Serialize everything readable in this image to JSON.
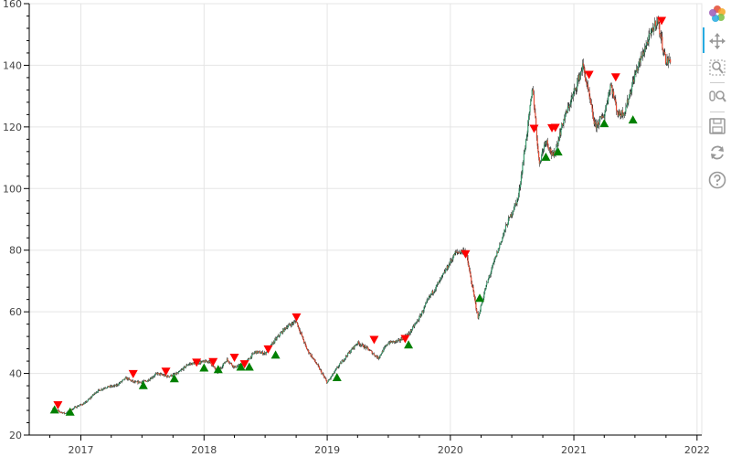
{
  "chart_data": {
    "type": "candlestick",
    "title": "",
    "xlabel": "",
    "ylabel": "",
    "x_tick_labels": [
      "2017",
      "2018",
      "2019",
      "2020",
      "2021",
      "2022"
    ],
    "y_tick_labels": [
      "20",
      "40",
      "60",
      "80",
      "100",
      "120",
      "140",
      "160"
    ],
    "xlim": [
      "2016-08-01",
      "2022-01-15"
    ],
    "ylim": [
      20,
      160
    ],
    "grid": true,
    "colors": {
      "up": "#3a9b6e",
      "down": "#e34a33",
      "wick": "#000000",
      "buy_marker": "#008000",
      "sell_marker": "#ff0000"
    },
    "price_path": [
      [
        "2016-10-10",
        28.5
      ],
      [
        "2016-11-01",
        27.5
      ],
      [
        "2016-11-15",
        27.0
      ],
      [
        "2016-12-15",
        29.0
      ],
      [
        "2017-01-15",
        30.5
      ],
      [
        "2017-02-15",
        34.0
      ],
      [
        "2017-03-15",
        35.5
      ],
      [
        "2017-04-15",
        36.0
      ],
      [
        "2017-05-15",
        38.5
      ],
      [
        "2017-06-10",
        37.0
      ],
      [
        "2017-07-15",
        37.5
      ],
      [
        "2017-08-15",
        40.0
      ],
      [
        "2017-09-15",
        39.0
      ],
      [
        "2017-10-15",
        40.0
      ],
      [
        "2017-11-15",
        43.0
      ],
      [
        "2017-12-15",
        43.5
      ],
      [
        "2018-01-15",
        44.0
      ],
      [
        "2018-02-10",
        40.5
      ],
      [
        "2018-03-10",
        44.5
      ],
      [
        "2018-04-01",
        42.0
      ],
      [
        "2018-05-01",
        43.0
      ],
      [
        "2018-06-01",
        47.0
      ],
      [
        "2018-07-01",
        46.5
      ],
      [
        "2018-08-01",
        51.0
      ],
      [
        "2018-09-01",
        55.0
      ],
      [
        "2018-10-01",
        57.0
      ],
      [
        "2018-11-01",
        48.0
      ],
      [
        "2018-12-01",
        43.0
      ],
      [
        "2019-01-01",
        37.0
      ],
      [
        "2019-02-01",
        42.0
      ],
      [
        "2019-03-01",
        46.0
      ],
      [
        "2019-04-01",
        50.0
      ],
      [
        "2019-05-01",
        48.0
      ],
      [
        "2019-06-01",
        45.0
      ],
      [
        "2019-07-01",
        50.0
      ],
      [
        "2019-08-01",
        50.5
      ],
      [
        "2019-09-01",
        53.0
      ],
      [
        "2019-10-01",
        58.0
      ],
      [
        "2019-11-01",
        65.0
      ],
      [
        "2019-12-01",
        70.0
      ],
      [
        "2020-01-15",
        79.0
      ],
      [
        "2020-02-15",
        80.0
      ],
      [
        "2020-03-23",
        58.0
      ],
      [
        "2020-04-15",
        68.0
      ],
      [
        "2020-05-15",
        78.0
      ],
      [
        "2020-06-15",
        88.0
      ],
      [
        "2020-07-20",
        97.0
      ],
      [
        "2020-08-15",
        118.0
      ],
      [
        "2020-09-01",
        133.0
      ],
      [
        "2020-09-20",
        108.0
      ],
      [
        "2020-10-10",
        116.0
      ],
      [
        "2020-11-01",
        110.0
      ],
      [
        "2020-12-01",
        122.0
      ],
      [
        "2021-01-01",
        131.0
      ],
      [
        "2021-01-28",
        140.0
      ],
      [
        "2021-03-05",
        120.0
      ],
      [
        "2021-04-01",
        124.0
      ],
      [
        "2021-04-20",
        134.0
      ],
      [
        "2021-05-12",
        124.0
      ],
      [
        "2021-06-01",
        125.0
      ],
      [
        "2021-07-01",
        137.0
      ],
      [
        "2021-08-01",
        146.0
      ],
      [
        "2021-09-05",
        155.0
      ],
      [
        "2021-10-01",
        141.0
      ],
      [
        "2021-10-15",
        142.0
      ]
    ],
    "sell_signals": [
      [
        "2016-10-25",
        29.8
      ],
      [
        "2017-06-05",
        39.9
      ],
      [
        "2017-09-10",
        40.7
      ],
      [
        "2017-12-10",
        43.6
      ],
      [
        "2018-01-28",
        43.8
      ],
      [
        "2018-04-01",
        45.2
      ],
      [
        "2018-05-01",
        43.1
      ],
      [
        "2018-07-10",
        47.9
      ],
      [
        "2018-10-02",
        58.3
      ],
      [
        "2019-05-20",
        51.0
      ],
      [
        "2019-08-20",
        51.3
      ],
      [
        "2020-02-15",
        78.8
      ],
      [
        "2020-09-05",
        119.5
      ],
      [
        "2020-10-28",
        119.7
      ],
      [
        "2020-11-07",
        119.8
      ],
      [
        "2021-02-15",
        137.0
      ],
      [
        "2021-05-05",
        136.2
      ],
      [
        "2021-09-18",
        154.5
      ]
    ],
    "buy_signals": [
      [
        "2016-10-15",
        28.2
      ],
      [
        "2016-11-30",
        27.5
      ],
      [
        "2017-07-05",
        36.1
      ],
      [
        "2017-10-05",
        38.3
      ],
      [
        "2018-01-01",
        41.8
      ],
      [
        "2018-02-12",
        41.3
      ],
      [
        "2018-04-20",
        42.1
      ],
      [
        "2018-05-15",
        42.1
      ],
      [
        "2018-08-01",
        46.0
      ],
      [
        "2019-01-30",
        38.7
      ],
      [
        "2019-08-30",
        49.3
      ],
      [
        "2020-03-28",
        64.4
      ],
      [
        "2020-10-10",
        110.2
      ],
      [
        "2020-11-15",
        111.9
      ],
      [
        "2021-04-01",
        121.1
      ],
      [
        "2021-06-25",
        122.3
      ]
    ]
  },
  "toolbar": {
    "tools": [
      {
        "name": "bokeh-logo",
        "icon": "bokeh-logo"
      },
      {
        "name": "pan-tool",
        "icon": "pan-icon",
        "active": true
      },
      {
        "name": "box-zoom-tool",
        "icon": "box-zoom-icon"
      },
      {
        "name": "wheel-zoom-tool",
        "icon": "wheel-zoom-icon"
      },
      {
        "name": "save-tool",
        "icon": "save-icon"
      },
      {
        "name": "reset-tool",
        "icon": "reset-icon"
      },
      {
        "name": "help-tool",
        "icon": "help-icon"
      }
    ]
  }
}
